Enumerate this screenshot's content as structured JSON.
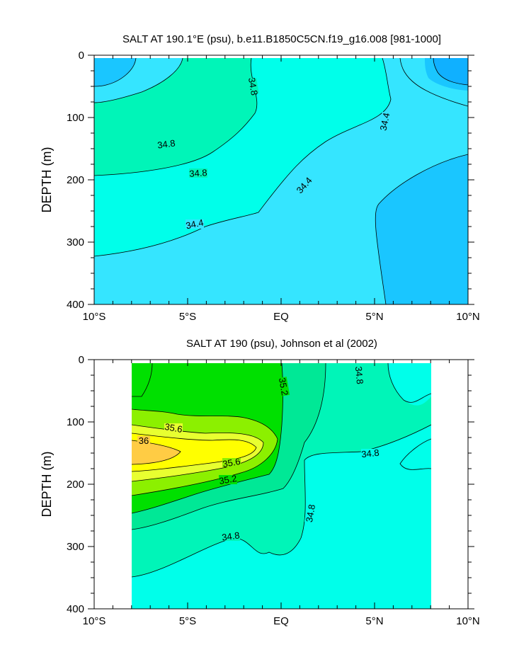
{
  "chart_data": [
    {
      "type": "contour",
      "title": "SALT AT 190.1°E (psu), b.e11.B1850C5CN.f19_g16.008 [981-1000]",
      "ylabel": "DEPTH (m)",
      "xlabel": "",
      "xlim": [
        -10,
        10
      ],
      "ylim": [
        0,
        400
      ],
      "y_inverted": true,
      "x_ticks": [
        {
          "value": -10,
          "label": "10°S"
        },
        {
          "value": -5,
          "label": "5°S"
        },
        {
          "value": 0,
          "label": "EQ"
        },
        {
          "value": 5,
          "label": "5°N"
        },
        {
          "value": 10,
          "label": "10°N"
        }
      ],
      "y_ticks": [
        0,
        100,
        200,
        300,
        400
      ],
      "contour_levels": [
        34.2,
        34.4,
        34.6,
        34.8
      ],
      "contour_labels": [
        {
          "text": "34.8",
          "x": -1.9,
          "y": 55,
          "angle": 80
        },
        {
          "text": "34.8",
          "x": -6.1,
          "y": 145,
          "angle": -8
        },
        {
          "text": "34.8",
          "x": -4.0,
          "y": 190,
          "angle": -4
        },
        {
          "text": "34.4",
          "x": 1.0,
          "y": 218,
          "angle": -48
        },
        {
          "text": "34.4",
          "x": -4.7,
          "y": 268,
          "angle": -12
        },
        {
          "text": "34.4",
          "x": 5.2,
          "y": 100,
          "angle": -78
        }
      ],
      "colors": [
        "#1AC6FF",
        "#35E5FF",
        "#00FFEA",
        "#00F5B8"
      ]
    },
    {
      "type": "contour",
      "title": "SALT AT 190 (psu), Johnson et al (2002)",
      "ylabel": "DEPTH (m)",
      "xlabel": "",
      "xlim": [
        -10,
        10
      ],
      "ylim": [
        0,
        400
      ],
      "y_inverted": true,
      "data_xrange": [
        -8,
        8
      ],
      "x_ticks": [
        {
          "value": -10,
          "label": "10°S"
        },
        {
          "value": -5,
          "label": "5°S"
        },
        {
          "value": 0,
          "label": "EQ"
        },
        {
          "value": 5,
          "label": "5°N"
        },
        {
          "value": 10,
          "label": "10°N"
        }
      ],
      "y_ticks": [
        0,
        100,
        200,
        300,
        400
      ],
      "contour_levels": [
        34.6,
        34.8,
        35.0,
        35.2,
        35.4,
        35.6,
        35.8,
        36.0
      ],
      "contour_labels": [
        {
          "text": "34.8",
          "x": 4.3,
          "y": 20,
          "angle": -85
        },
        {
          "text": "35.2",
          "x": 0.1,
          "y": 60,
          "angle": 80
        },
        {
          "text": "35.6",
          "x": -5.9,
          "y": 112,
          "angle": 10
        },
        {
          "text": "36",
          "x": -7.6,
          "y": 130,
          "angle": 0
        },
        {
          "text": "35.6",
          "x": -2.6,
          "y": 163,
          "angle": -10
        },
        {
          "text": "35.2",
          "x": -2.6,
          "y": 189,
          "angle": -10
        },
        {
          "text": "34.8",
          "x": 5.0,
          "y": 153,
          "angle": -6
        },
        {
          "text": "34.8",
          "x": 1.6,
          "y": 246,
          "angle": -80
        },
        {
          "text": "34.8",
          "x": -3.2,
          "y": 292,
          "angle": -8
        }
      ],
      "colors": [
        "#00FFEA",
        "#00F5B8",
        "#00E896",
        "#00E000",
        "#8CF000",
        "#E8FF30",
        "#FFFF00",
        "#FFCC44"
      ]
    }
  ]
}
